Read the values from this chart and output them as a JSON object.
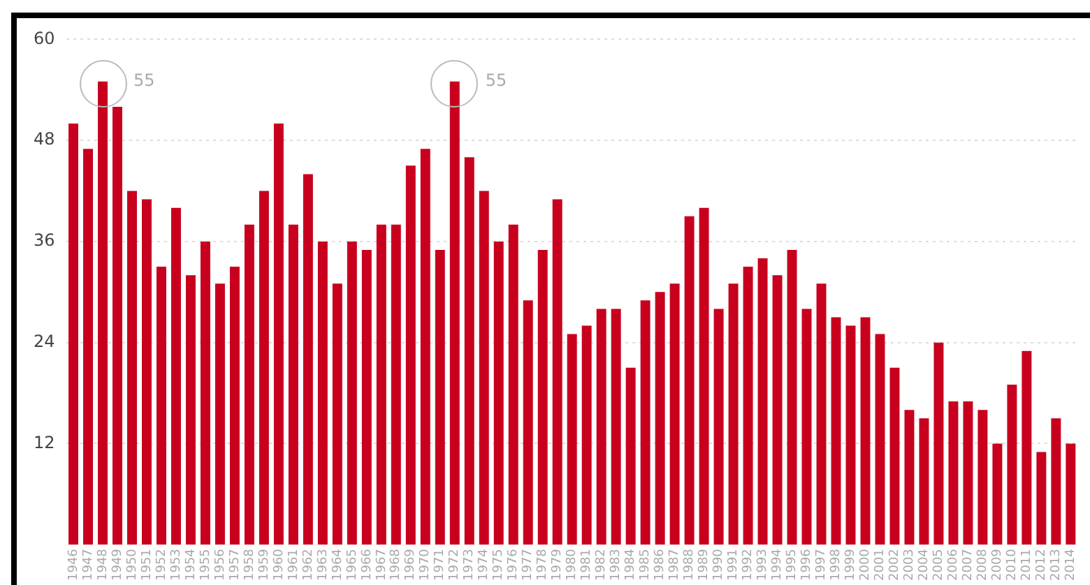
{
  "chart_data": {
    "type": "bar",
    "categories": [
      "1946",
      "1947",
      "1948",
      "1949",
      "1950",
      "1951",
      "1952",
      "1953",
      "1954",
      "1955",
      "1956",
      "1957",
      "1958",
      "1959",
      "1960",
      "1961",
      "1962",
      "1963",
      "1964",
      "1965",
      "1966",
      "1967",
      "1968",
      "1969",
      "1970",
      "1971",
      "1972",
      "1973",
      "1974",
      "1975",
      "1976",
      "1977",
      "1978",
      "1979",
      "1980",
      "1981",
      "1982",
      "1983",
      "1984",
      "1985",
      "1986",
      "1987",
      "1988",
      "1989",
      "1990",
      "1991",
      "1992",
      "1993",
      "1994",
      "1995",
      "1996",
      "1997",
      "1998",
      "1999",
      "2000",
      "2001",
      "2002",
      "2003",
      "2004",
      "2005",
      "2006",
      "2007",
      "2008",
      "2009",
      "2010",
      "2011",
      "2012",
      "2013",
      "2014"
    ],
    "values": [
      50,
      47,
      55,
      52,
      42,
      41,
      33,
      40,
      32,
      36,
      31,
      33,
      38,
      42,
      50,
      38,
      44,
      36,
      31,
      36,
      35,
      38,
      38,
      45,
      47,
      35,
      55,
      46,
      42,
      36,
      38,
      29,
      35,
      41,
      25,
      26,
      28,
      28,
      21,
      29,
      30,
      31,
      39,
      40,
      28,
      31,
      33,
      34,
      32,
      35,
      28,
      31,
      27,
      26,
      27,
      25,
      21,
      16,
      15,
      24,
      17,
      17,
      16,
      12,
      19,
      23,
      11,
      15,
      12
    ],
    "color": "#c8001e",
    "ylim": [
      0,
      60
    ],
    "yticks": [
      12,
      24,
      36,
      48,
      60
    ],
    "grid": "y",
    "annotations": [
      {
        "text": "55",
        "x": "1948",
        "y": 55
      },
      {
        "text": "55",
        "x": "1972",
        "y": 55
      }
    ]
  }
}
